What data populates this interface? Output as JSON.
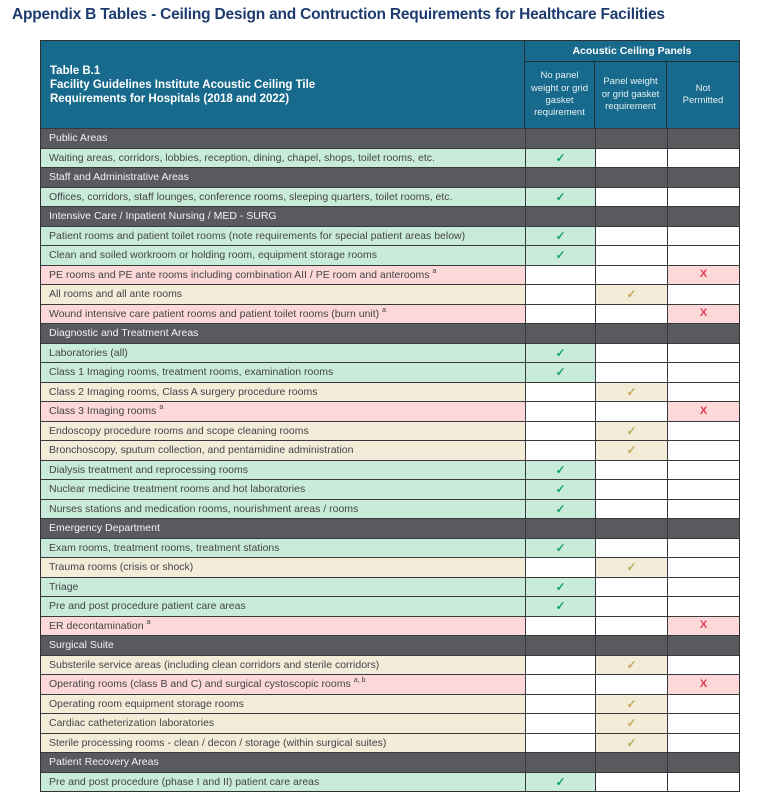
{
  "page_title": "Appendix B Tables - Ceiling Design and Contruction Requirements for Healthcare Facilities",
  "table": {
    "title_lines": {
      "0": "Table B.1",
      "1": "Facility Guidelines Institute Acoustic Ceiling Tile",
      "2": "Requirements for Hospitals (2018 and 2022)"
    },
    "col_group_header": "Acoustic Ceiling Panels",
    "columns": {
      "0": "No panel weight or grid gasket requirement",
      "1": "Panel weight or grid gasket requirement",
      "2": "Not Permitted"
    },
    "rows": [
      {
        "type": "section",
        "label": "Public Areas"
      },
      {
        "type": "data",
        "variant": "green",
        "label": "Waiting areas, corridors, lobbies, reception, dining, chapel, shops, toilet rooms, etc.",
        "sup": "",
        "mark": "check",
        "mark_col": 1
      },
      {
        "type": "section",
        "label": "Staff and Administrative Areas"
      },
      {
        "type": "data",
        "variant": "green",
        "label": "Offices, corridors, staff lounges, conference rooms, sleeping quarters, toilet rooms, etc.",
        "sup": "",
        "mark": "check",
        "mark_col": 1
      },
      {
        "type": "section",
        "label": "Intensive Care / Inpatient Nursing / MED - SURG"
      },
      {
        "type": "data",
        "variant": "green",
        "label": "Patient rooms and patient toilet rooms (note requirements for special patient areas below)",
        "sup": "",
        "mark": "check",
        "mark_col": 1
      },
      {
        "type": "data",
        "variant": "green",
        "label": "Clean and soiled workroom or holding room, equipment storage rooms",
        "sup": "",
        "mark": "check",
        "mark_col": 1
      },
      {
        "type": "data",
        "variant": "pink",
        "label": "PE rooms and PE ante rooms including combination AII / PE room and anterooms",
        "sup": "a",
        "mark": "x",
        "mark_col": 3
      },
      {
        "type": "data",
        "variant": "tan",
        "label": "All rooms and all ante rooms",
        "sup": "",
        "mark": "check",
        "mark_col": 2
      },
      {
        "type": "data",
        "variant": "pink",
        "label": "Wound intensive care patient rooms and patient toilet rooms (burn unit)",
        "sup": "a",
        "mark": "x",
        "mark_col": 3
      },
      {
        "type": "section",
        "label": "Diagnostic and Treatment Areas"
      },
      {
        "type": "data",
        "variant": "green",
        "label": "Laboratories (all)",
        "sup": "",
        "mark": "check",
        "mark_col": 1
      },
      {
        "type": "data",
        "variant": "green",
        "label": "Class 1 Imaging rooms, treatment rooms, examination rooms",
        "sup": "",
        "mark": "check",
        "mark_col": 1
      },
      {
        "type": "data",
        "variant": "tan",
        "label": "Class 2 Imaging rooms, Class A surgery procedure rooms",
        "sup": "",
        "mark": "check",
        "mark_col": 2
      },
      {
        "type": "data",
        "variant": "pink",
        "label": "Class 3 Imaging rooms",
        "sup": "a",
        "mark": "x",
        "mark_col": 3
      },
      {
        "type": "data",
        "variant": "tan",
        "label": "Endoscopy procedure rooms and scope cleaning rooms",
        "sup": "",
        "mark": "check",
        "mark_col": 2
      },
      {
        "type": "data",
        "variant": "tan",
        "label": "Bronchoscopy, sputum collection, and pentamidine administration",
        "sup": "",
        "mark": "check",
        "mark_col": 2
      },
      {
        "type": "data",
        "variant": "green",
        "label": "Dialysis treatment and reprocessing rooms",
        "sup": "",
        "mark": "check",
        "mark_col": 1
      },
      {
        "type": "data",
        "variant": "green",
        "label": "Nuclear medicine treatment rooms and hot laboratories",
        "sup": "",
        "mark": "check",
        "mark_col": 1
      },
      {
        "type": "data",
        "variant": "green",
        "label": "Nurses stations and medication rooms, nourishment areas / rooms",
        "sup": "",
        "mark": "check",
        "mark_col": 1
      },
      {
        "type": "section",
        "label": "Emergency Department"
      },
      {
        "type": "data",
        "variant": "green",
        "label": "Exam rooms, treatment rooms, treatment stations",
        "sup": "",
        "mark": "check",
        "mark_col": 1
      },
      {
        "type": "data",
        "variant": "tan",
        "label": "Trauma rooms (crisis or shock)",
        "sup": "",
        "mark": "check",
        "mark_col": 2
      },
      {
        "type": "data",
        "variant": "green",
        "label": "Triage",
        "sup": "",
        "mark": "check",
        "mark_col": 1
      },
      {
        "type": "data",
        "variant": "green",
        "label": "Pre and post procedure patient care areas",
        "sup": "",
        "mark": "check",
        "mark_col": 1
      },
      {
        "type": "data",
        "variant": "pink",
        "label": "ER decontamination",
        "sup": "a",
        "mark": "x",
        "mark_col": 3
      },
      {
        "type": "section",
        "label": "Surgical Suite"
      },
      {
        "type": "data",
        "variant": "tan",
        "label": "Substerile service areas (including clean corridors and sterile corridors)",
        "sup": "",
        "mark": "check",
        "mark_col": 2
      },
      {
        "type": "data",
        "variant": "pink",
        "label": "Operating rooms (class B and C) and surgical cystoscopic rooms",
        "sup": "a, b",
        "mark": "x",
        "mark_col": 3
      },
      {
        "type": "data",
        "variant": "tan",
        "label": "Operating room equipment storage rooms",
        "sup": "",
        "mark": "check",
        "mark_col": 2
      },
      {
        "type": "data",
        "variant": "tan",
        "label": "Cardiac catheterization laboratories",
        "sup": "",
        "mark": "check",
        "mark_col": 2
      },
      {
        "type": "data",
        "variant": "tan",
        "label": "Sterile processing rooms - clean / decon / storage (within surgical suites)",
        "sup": "",
        "mark": "check",
        "mark_col": 2
      },
      {
        "type": "section",
        "label": "Patient Recovery Areas"
      },
      {
        "type": "data",
        "variant": "green",
        "label": "Pre and post procedure (phase I and II) patient care areas",
        "sup": "",
        "mark": "check",
        "mark_col": 1
      }
    ]
  },
  "marks": {
    "check": "✓",
    "x": "X"
  },
  "colors": {
    "title_navy": "#1d3b6e",
    "header_teal": "#176a8c",
    "section_gray": "#595a5e",
    "row_green": "#c9ebda",
    "row_tan": "#f2ecd9",
    "row_pink": "#fcd9d8",
    "check_green": "#17a276",
    "check_tan": "#c3aa5e",
    "x_red": "#e33b4e"
  }
}
